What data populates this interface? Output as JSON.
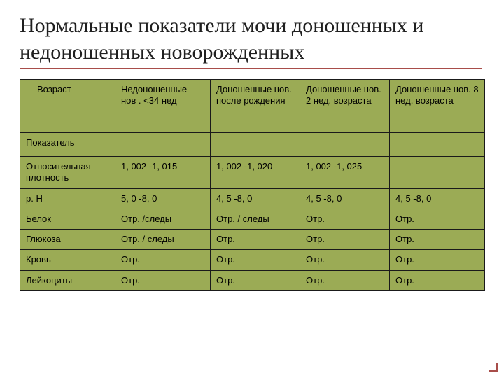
{
  "slide": {
    "title": "Нормальные показатели мочи доношенных и недоношенных новорожденных",
    "title_color": "#1f1f1f",
    "rule_color": "#a84d4a",
    "table": {
      "background_color": "#9bab55",
      "border_color": "#1a1a1a",
      "font_size": 13,
      "header": {
        "age_label": "Возраст",
        "cols": [
          "Недоношенные нов . <34 нед",
          "Доношенные нов. после рождения",
          "Доношенные нов. 2 нед. возраста",
          "Доношенные нов. 8 нед. возраста"
        ]
      },
      "indicator_label": "Показатель",
      "rows": [
        {
          "label": "Относительная плотность",
          "cells": [
            "1, 002 -1, 015",
            "1, 002 -1, 020",
            "1, 002 -1, 025",
            ""
          ]
        },
        {
          "label": "р. Н",
          "cells": [
            "5, 0 -8, 0",
            "4, 5 -8, 0",
            "4, 5 -8, 0",
            "4, 5 -8, 0"
          ]
        },
        {
          "label": "Белок",
          "cells": [
            "Отр. /следы",
            "Отр. / следы",
            "Отр.",
            "Отр."
          ]
        },
        {
          "label": "Глюкоза",
          "cells": [
            "Отр. / следы",
            "Отр.",
            "Отр.",
            "Отр."
          ]
        },
        {
          "label": "Кровь",
          "cells": [
            "Отр.",
            "Отр.",
            "Отр.",
            "Отр."
          ]
        },
        {
          "label": "Лейкоциты",
          "cells": [
            "Отр.",
            "Отр.",
            "Отр.",
            "Отр."
          ]
        }
      ]
    }
  }
}
